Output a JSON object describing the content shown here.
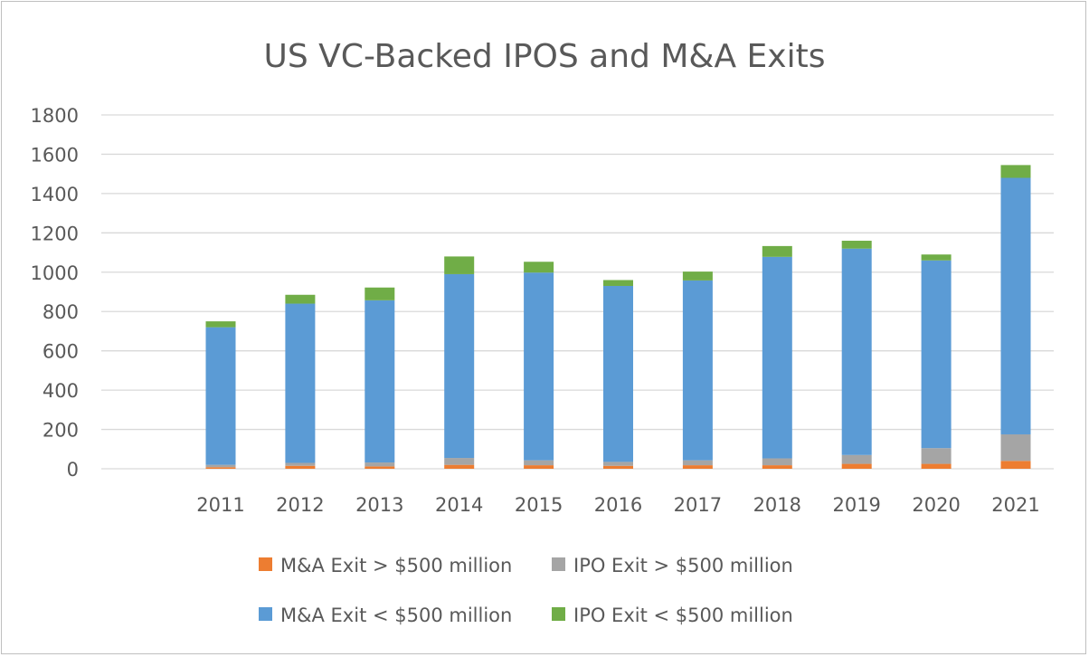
{
  "chart_data": {
    "type": "bar",
    "stacked": true,
    "title": "US VC-Backed IPOS and M&A Exits",
    "xlabel": "",
    "ylabel": "",
    "ylim": [
      0,
      1800
    ],
    "yticks": [
      0,
      200,
      400,
      600,
      800,
      1000,
      1200,
      1400,
      1600,
      1800
    ],
    "grid": true,
    "legend_position": "bottom",
    "categories": [
      "2011",
      "2012",
      "2013",
      "2014",
      "2015",
      "2016",
      "2017",
      "2018",
      "2019",
      "2020",
      "2021"
    ],
    "series": [
      {
        "name": "M&A Exit > $500 million",
        "color": "#ed7d31",
        "values": [
          8,
          15,
          12,
          20,
          18,
          15,
          18,
          18,
          25,
          25,
          40
        ]
      },
      {
        "name": "IPO Exit > $500 million",
        "color": "#a5a5a5",
        "values": [
          12,
          15,
          20,
          35,
          25,
          20,
          25,
          35,
          45,
          80,
          135
        ]
      },
      {
        "name": "M&A Exit < $500 million",
        "color": "#5b9bd5",
        "values": [
          700,
          810,
          825,
          935,
          955,
          895,
          915,
          1025,
          1050,
          955,
          1305
        ]
      },
      {
        "name": "IPO Exit < $500 million",
        "color": "#70ad47",
        "values": [
          30,
          45,
          65,
          90,
          55,
          30,
          45,
          55,
          40,
          30,
          65
        ]
      }
    ]
  }
}
